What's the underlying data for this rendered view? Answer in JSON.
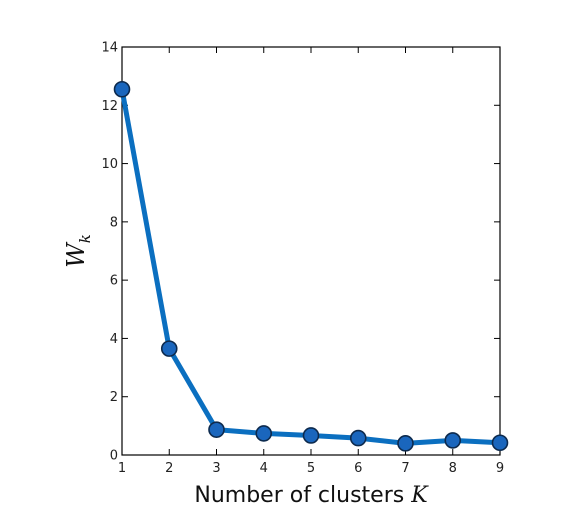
{
  "chart_data": {
    "type": "line",
    "title": "",
    "x": [
      1,
      2,
      3,
      4,
      5,
      6,
      7,
      8,
      9
    ],
    "series": [
      {
        "values": [
          12.55,
          3.65,
          0.87,
          0.74,
          0.67,
          0.58,
          0.4,
          0.5,
          0.42
        ]
      }
    ],
    "xlabel_prefix": "Number of clusters ",
    "xlabel_var": "K",
    "ylabel_main": "W",
    "ylabel_sub": "k",
    "xlim": [
      1,
      9
    ],
    "ylim": [
      0,
      14
    ],
    "xticks": [
      1,
      2,
      3,
      4,
      5,
      6,
      7,
      8,
      9
    ],
    "yticks": [
      0,
      2,
      4,
      6,
      8,
      10,
      12,
      14
    ],
    "grid": false,
    "legend": "none",
    "line_color": "#0b6fc0",
    "marker_fill": "#1a66bd",
    "marker_edge": "#0d2a4d"
  }
}
